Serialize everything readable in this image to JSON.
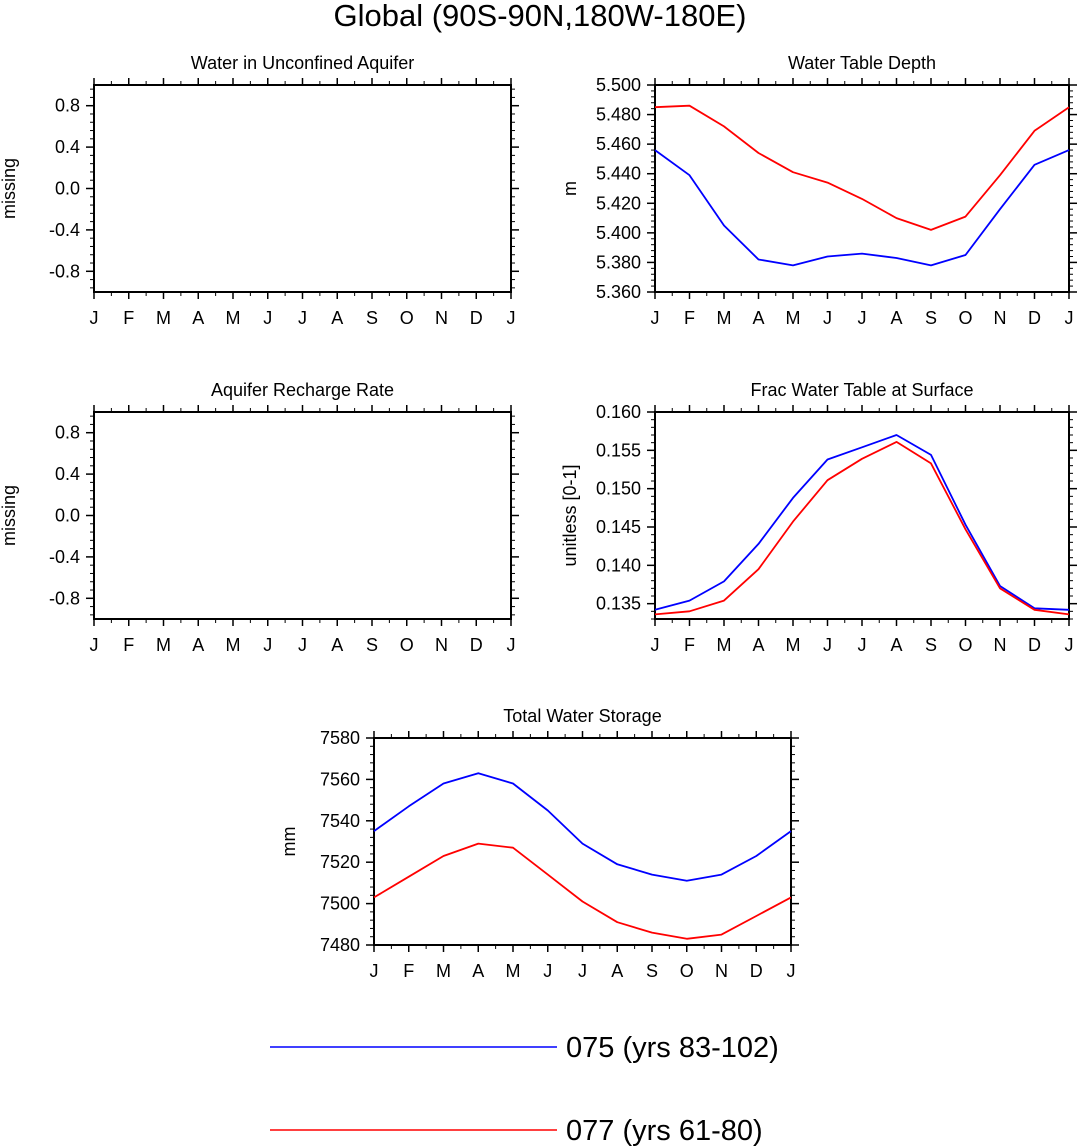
{
  "figure_title": "Global (90S-90N,180W-180E)",
  "colors": {
    "series_a": "#0000ff",
    "series_b": "#ff0000",
    "axis": "#000000"
  },
  "legend": [
    {
      "label": "075 (yrs 83-102)",
      "color": "#0000ff"
    },
    {
      "label": "077 (yrs 61-80)",
      "color": "#ff0000"
    }
  ],
  "chart_data": [
    {
      "id": "aquifer",
      "type": "line",
      "title": "Water in Unconfined Aquifer",
      "xlabel": "",
      "ylabel": "missing",
      "categories": [
        "J",
        "F",
        "M",
        "A",
        "M",
        "J",
        "J",
        "A",
        "S",
        "O",
        "N",
        "D",
        "J"
      ],
      "ylim": [
        -1.0,
        1.0
      ],
      "yticks": [
        -0.8,
        -0.4,
        0.0,
        0.4,
        0.8
      ],
      "ytick_labels": [
        "-0.8",
        "-0.4",
        "0.0",
        "0.4",
        "0.8"
      ],
      "series": []
    },
    {
      "id": "wtd",
      "type": "line",
      "title": "Water Table Depth",
      "xlabel": "",
      "ylabel": "m",
      "categories": [
        "J",
        "F",
        "M",
        "A",
        "M",
        "J",
        "J",
        "A",
        "S",
        "O",
        "N",
        "D",
        "J"
      ],
      "ylim": [
        5.36,
        5.5
      ],
      "yticks": [
        5.36,
        5.38,
        5.4,
        5.42,
        5.44,
        5.46,
        5.48,
        5.5
      ],
      "ytick_labels": [
        "5.360",
        "5.380",
        "5.400",
        "5.420",
        "5.440",
        "5.460",
        "5.480",
        "5.500"
      ],
      "series": [
        {
          "name": "075 (yrs 83-102)",
          "color": "#0000ff",
          "values": [
            5.456,
            5.439,
            5.405,
            5.382,
            5.378,
            5.384,
            5.386,
            5.383,
            5.378,
            5.385,
            5.416,
            5.446,
            5.456
          ]
        },
        {
          "name": "077 (yrs 61-80)",
          "color": "#ff0000",
          "values": [
            5.485,
            5.486,
            5.472,
            5.454,
            5.441,
            5.434,
            5.423,
            5.41,
            5.402,
            5.411,
            5.439,
            5.469,
            5.485
          ]
        }
      ]
    },
    {
      "id": "recharge",
      "type": "line",
      "title": "Aquifer Recharge Rate",
      "xlabel": "",
      "ylabel": "missing",
      "categories": [
        "J",
        "F",
        "M",
        "A",
        "M",
        "J",
        "J",
        "A",
        "S",
        "O",
        "N",
        "D",
        "J"
      ],
      "ylim": [
        -1.0,
        1.0
      ],
      "yticks": [
        -0.8,
        -0.4,
        0.0,
        0.4,
        0.8
      ],
      "ytick_labels": [
        "-0.8",
        "-0.4",
        "0.0",
        "0.4",
        "0.8"
      ],
      "series": []
    },
    {
      "id": "frac",
      "type": "line",
      "title": "Frac Water Table at Surface",
      "xlabel": "",
      "ylabel": "unitless [0-1]",
      "categories": [
        "J",
        "F",
        "M",
        "A",
        "M",
        "J",
        "J",
        "A",
        "S",
        "O",
        "N",
        "D",
        "J"
      ],
      "ylim": [
        0.133,
        0.16
      ],
      "yticks": [
        0.135,
        0.14,
        0.145,
        0.15,
        0.155,
        0.16
      ],
      "ytick_labels": [
        "0.135",
        "0.140",
        "0.145",
        "0.150",
        "0.155",
        "0.160"
      ],
      "series": [
        {
          "name": "075 (yrs 83-102)",
          "color": "#0000ff",
          "values": [
            0.1342,
            0.1354,
            0.1379,
            0.1428,
            0.1488,
            0.1538,
            0.1554,
            0.157,
            0.1544,
            0.1453,
            0.1373,
            0.1344,
            0.1342
          ]
        },
        {
          "name": "077 (yrs 61-80)",
          "color": "#ff0000",
          "values": [
            0.1336,
            0.134,
            0.1354,
            0.1395,
            0.1457,
            0.1511,
            0.1539,
            0.1561,
            0.1533,
            0.1447,
            0.137,
            0.1342,
            0.1336
          ]
        }
      ]
    },
    {
      "id": "tws",
      "type": "line",
      "title": "Total Water Storage",
      "xlabel": "",
      "ylabel": "mm",
      "categories": [
        "J",
        "F",
        "M",
        "A",
        "M",
        "J",
        "J",
        "A",
        "S",
        "O",
        "N",
        "D",
        "J"
      ],
      "ylim": [
        7480,
        7580
      ],
      "yticks": [
        7480,
        7500,
        7520,
        7540,
        7560,
        7580
      ],
      "ytick_labels": [
        "7480",
        "7500",
        "7520",
        "7540",
        "7560",
        "7580"
      ],
      "series": [
        {
          "name": "075 (yrs 83-102)",
          "color": "#0000ff",
          "values": [
            7535,
            7547,
            7558,
            7563,
            7558,
            7545,
            7529,
            7519,
            7514,
            7511,
            7514,
            7523,
            7535
          ]
        },
        {
          "name": "077 (yrs 61-80)",
          "color": "#ff0000",
          "values": [
            7503,
            7513,
            7523,
            7529,
            7527,
            7514,
            7501,
            7491,
            7486,
            7483,
            7485,
            7494,
            7503
          ]
        }
      ]
    }
  ]
}
